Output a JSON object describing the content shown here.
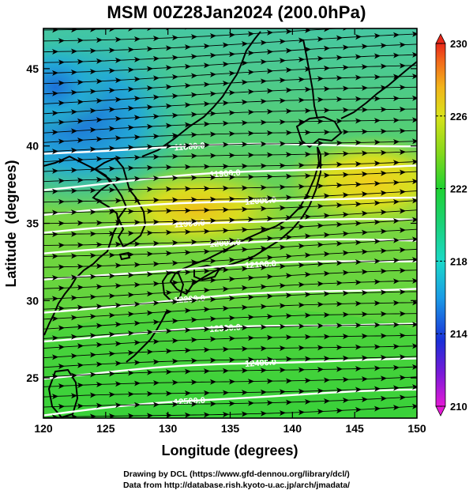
{
  "title": "MSM 00Z28Jan2024 (200.0hPa)",
  "chart_data": {
    "type": "map",
    "xlabel": "Longitude (degrees)",
    "ylabel": "Latitude  (degrees)",
    "xlim": [
      120,
      150
    ],
    "ylim": [
      22.4,
      47.6
    ],
    "xticks": [
      "120",
      "125",
      "130",
      "135",
      "140",
      "145",
      "150"
    ],
    "yticks": [
      "25",
      "30",
      "35",
      "40",
      "45"
    ],
    "colorbar": {
      "min": 210,
      "max": 230,
      "tick_labels": [
        "210",
        "214",
        "218",
        "222",
        "226",
        "230"
      ],
      "colors": [
        "#e41ad6",
        "#7a19d8",
        "#1a2fd8",
        "#1a9ce6",
        "#1ad9c8",
        "#1ad27a",
        "#1fd231",
        "#86d81b",
        "#d9e21a",
        "#f2b41a",
        "#f26a1a",
        "#e8281a"
      ]
    },
    "height_contours": [
      {
        "label": "11800.0",
        "lat_left": 39.5,
        "lat_right": 40.0
      },
      {
        "label": "11900.0",
        "lat_left": 37.2,
        "lat_right": 38.7
      },
      {
        "label": "12000.0",
        "lat_left": 35.6,
        "lat_right": 36.6
      },
      {
        "label": "11900.0",
        "lat_left": 34.4,
        "lat_right": 35.2
      },
      {
        "label": "12000.0",
        "lat_left": 33.0,
        "lat_right": 33.9
      },
      {
        "label": "12100.0",
        "lat_left": 31.3,
        "lat_right": 32.6
      },
      {
        "label": "12200.0",
        "lat_left": 29.2,
        "lat_right": 30.8
      },
      {
        "label": "12300.0",
        "lat_left": 27.4,
        "lat_right": 28.5
      },
      {
        "label": "12400.0",
        "lat_left": 25.0,
        "lat_right": 26.2
      },
      {
        "label": "12500.0",
        "lat_left": 22.6,
        "lat_right": 24.2
      }
    ],
    "grid": false
  },
  "credit_line1": "Drawing by DCL (https://www.gfd-dennou.org/library/dcl/)",
  "credit_line2": "Data from http://database.rish.kyoto-u.ac.jp/arch/jmadata/"
}
